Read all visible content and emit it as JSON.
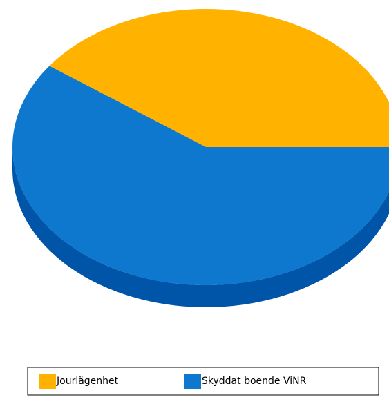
{
  "chart_data": {
    "type": "pie",
    "categories": [
      "Jourlägenhet",
      "Skyddat boende ViNR"
    ],
    "values": [
      40,
      60
    ],
    "colors": [
      "#ffb300",
      "#0e78cf"
    ],
    "side_colors": [
      "#c98c00",
      "#0055a8"
    ],
    "start_angle": 0,
    "direction": "counterclockwise",
    "legend": "bottom"
  }
}
